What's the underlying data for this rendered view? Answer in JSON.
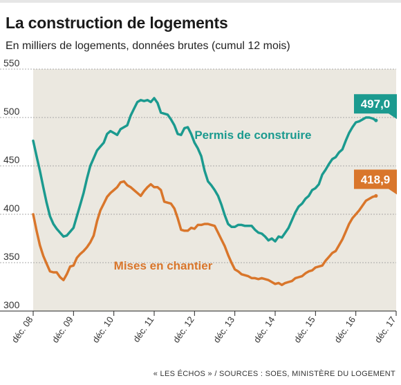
{
  "header": {
    "title": "La construction de logements",
    "subtitle": "En milliers de logements, données brutes (cumul 12 mois)"
  },
  "footer": {
    "credit": "« LES ÉCHOS »  / SOURCES : SOES, MINISTÈRE DU LOGEMENT"
  },
  "colors": {
    "permis": "#1b9a8f",
    "mises": "#d9762b",
    "plot_bg": "#ebe8e0",
    "grid": "#a9a9a9"
  },
  "chart_data": {
    "type": "line",
    "ylim": [
      300,
      550
    ],
    "yticks": [
      300,
      350,
      400,
      450,
      500,
      550
    ],
    "x_range": [
      "2008-12",
      "2017-12"
    ],
    "xtick_labels": [
      "déc. 08",
      "déc. 09",
      "déc. 10",
      "déc. 11",
      "déc. 12",
      "déc. 13",
      "déc. 14",
      "déc. 15",
      "déc. 16",
      "déc. 17"
    ],
    "grid": true,
    "series": [
      {
        "name": "Permis de construire",
        "color": "#1b9a8f",
        "end_label": "497,0",
        "points": [
          [
            "2008-12",
            476
          ],
          [
            "2009-01",
            460
          ],
          [
            "2009-02",
            445
          ],
          [
            "2009-03",
            428
          ],
          [
            "2009-04",
            412
          ],
          [
            "2009-05",
            398
          ],
          [
            "2009-06",
            390
          ],
          [
            "2009-07",
            385
          ],
          [
            "2009-08",
            381
          ],
          [
            "2009-09",
            377
          ],
          [
            "2009-10",
            378
          ],
          [
            "2009-11",
            382
          ],
          [
            "2009-12",
            386
          ],
          [
            "2010-01",
            398
          ],
          [
            "2010-02",
            410
          ],
          [
            "2010-03",
            422
          ],
          [
            "2010-04",
            437
          ],
          [
            "2010-05",
            450
          ],
          [
            "2010-06",
            458
          ],
          [
            "2010-07",
            466
          ],
          [
            "2010-08",
            470
          ],
          [
            "2010-09",
            474
          ],
          [
            "2010-10",
            483
          ],
          [
            "2010-11",
            486
          ],
          [
            "2010-12",
            484
          ],
          [
            "2011-01",
            482
          ],
          [
            "2011-02",
            488
          ],
          [
            "2011-03",
            490
          ],
          [
            "2011-04",
            492
          ],
          [
            "2011-05",
            502
          ],
          [
            "2011-06",
            509
          ],
          [
            "2011-07",
            516
          ],
          [
            "2011-08",
            518
          ],
          [
            "2011-09",
            517
          ],
          [
            "2011-10",
            518
          ],
          [
            "2011-11",
            516
          ],
          [
            "2011-12",
            520
          ],
          [
            "2012-01",
            515
          ],
          [
            "2012-02",
            505
          ],
          [
            "2012-03",
            504
          ],
          [
            "2012-04",
            503
          ],
          [
            "2012-05",
            498
          ],
          [
            "2012-06",
            492
          ],
          [
            "2012-07",
            483
          ],
          [
            "2012-08",
            482
          ],
          [
            "2012-09",
            489
          ],
          [
            "2012-10",
            490
          ],
          [
            "2012-11",
            483
          ],
          [
            "2012-12",
            474
          ],
          [
            "2013-01",
            468
          ],
          [
            "2013-02",
            460
          ],
          [
            "2013-03",
            445
          ],
          [
            "2013-04",
            434
          ],
          [
            "2013-05",
            430
          ],
          [
            "2013-06",
            425
          ],
          [
            "2013-07",
            419
          ],
          [
            "2013-08",
            410
          ],
          [
            "2013-09",
            399
          ],
          [
            "2013-10",
            390
          ],
          [
            "2013-11",
            387
          ],
          [
            "2013-12",
            387
          ],
          [
            "2014-01",
            389
          ],
          [
            "2014-02",
            389
          ],
          [
            "2014-03",
            388
          ],
          [
            "2014-04",
            388
          ],
          [
            "2014-05",
            388
          ],
          [
            "2014-06",
            384
          ],
          [
            "2014-07",
            381
          ],
          [
            "2014-08",
            380
          ],
          [
            "2014-09",
            377
          ],
          [
            "2014-10",
            373
          ],
          [
            "2014-11",
            375
          ],
          [
            "2014-12",
            372
          ],
          [
            "2015-01",
            377
          ],
          [
            "2015-02",
            376
          ],
          [
            "2015-03",
            381
          ],
          [
            "2015-04",
            386
          ],
          [
            "2015-05",
            394
          ],
          [
            "2015-06",
            402
          ],
          [
            "2015-07",
            408
          ],
          [
            "2015-08",
            411
          ],
          [
            "2015-09",
            416
          ],
          [
            "2015-10",
            419
          ],
          [
            "2015-11",
            425
          ],
          [
            "2015-12",
            427
          ],
          [
            "2016-01",
            431
          ],
          [
            "2016-02",
            441
          ],
          [
            "2016-03",
            446
          ],
          [
            "2016-04",
            452
          ],
          [
            "2016-05",
            457
          ],
          [
            "2016-06",
            459
          ],
          [
            "2016-07",
            464
          ],
          [
            "2016-08",
            467
          ],
          [
            "2016-09",
            476
          ],
          [
            "2016-10",
            484
          ],
          [
            "2016-11",
            490
          ],
          [
            "2016-12",
            495
          ],
          [
            "2017-01",
            496
          ],
          [
            "2017-02",
            498
          ],
          [
            "2017-03",
            500
          ],
          [
            "2017-04",
            500
          ],
          [
            "2017-05",
            499
          ],
          [
            "2017-06",
            497
          ]
        ]
      },
      {
        "name": "Mises en chantier",
        "color": "#d9762b",
        "end_label": "418,9",
        "points": [
          [
            "2008-12",
            400
          ],
          [
            "2009-01",
            383
          ],
          [
            "2009-02",
            368
          ],
          [
            "2009-03",
            357
          ],
          [
            "2009-04",
            349
          ],
          [
            "2009-05",
            341
          ],
          [
            "2009-06",
            340
          ],
          [
            "2009-07",
            340
          ],
          [
            "2009-08",
            335
          ],
          [
            "2009-09",
            332
          ],
          [
            "2009-10",
            338
          ],
          [
            "2009-11",
            346
          ],
          [
            "2009-12",
            347
          ],
          [
            "2010-01",
            355
          ],
          [
            "2010-02",
            359
          ],
          [
            "2010-03",
            362
          ],
          [
            "2010-04",
            366
          ],
          [
            "2010-05",
            371
          ],
          [
            "2010-06",
            378
          ],
          [
            "2010-07",
            393
          ],
          [
            "2010-08",
            404
          ],
          [
            "2010-09",
            411
          ],
          [
            "2010-10",
            418
          ],
          [
            "2010-11",
            422
          ],
          [
            "2010-12",
            425
          ],
          [
            "2011-01",
            428
          ],
          [
            "2011-02",
            433
          ],
          [
            "2011-03",
            434
          ],
          [
            "2011-04",
            430
          ],
          [
            "2011-05",
            428
          ],
          [
            "2011-06",
            425
          ],
          [
            "2011-07",
            422
          ],
          [
            "2011-08",
            419
          ],
          [
            "2011-09",
            424
          ],
          [
            "2011-10",
            428
          ],
          [
            "2011-11",
            431
          ],
          [
            "2011-12",
            428
          ],
          [
            "2012-01",
            428
          ],
          [
            "2012-02",
            425
          ],
          [
            "2012-03",
            413
          ],
          [
            "2012-04",
            412
          ],
          [
            "2012-05",
            411
          ],
          [
            "2012-06",
            406
          ],
          [
            "2012-07",
            396
          ],
          [
            "2012-08",
            384
          ],
          [
            "2012-09",
            383
          ],
          [
            "2012-10",
            383
          ],
          [
            "2012-11",
            386
          ],
          [
            "2012-12",
            385
          ],
          [
            "2013-01",
            389
          ],
          [
            "2013-02",
            389
          ],
          [
            "2013-03",
            390
          ],
          [
            "2013-04",
            390
          ],
          [
            "2013-05",
            389
          ],
          [
            "2013-06",
            388
          ],
          [
            "2013-07",
            381
          ],
          [
            "2013-08",
            374
          ],
          [
            "2013-09",
            367
          ],
          [
            "2013-10",
            358
          ],
          [
            "2013-11",
            350
          ],
          [
            "2013-12",
            343
          ],
          [
            "2014-01",
            341
          ],
          [
            "2014-02",
            338
          ],
          [
            "2014-03",
            337
          ],
          [
            "2014-04",
            336
          ],
          [
            "2014-05",
            334
          ],
          [
            "2014-06",
            334
          ],
          [
            "2014-07",
            333
          ],
          [
            "2014-08",
            334
          ],
          [
            "2014-09",
            333
          ],
          [
            "2014-10",
            332
          ],
          [
            "2014-11",
            330
          ],
          [
            "2014-12",
            328
          ],
          [
            "2015-01",
            329
          ],
          [
            "2015-02",
            327
          ],
          [
            "2015-03",
            329
          ],
          [
            "2015-04",
            330
          ],
          [
            "2015-05",
            331
          ],
          [
            "2015-06",
            334
          ],
          [
            "2015-07",
            335
          ],
          [
            "2015-08",
            336
          ],
          [
            "2015-09",
            339
          ],
          [
            "2015-10",
            341
          ],
          [
            "2015-11",
            342
          ],
          [
            "2015-12",
            345
          ],
          [
            "2016-01",
            346
          ],
          [
            "2016-02",
            347
          ],
          [
            "2016-03",
            352
          ],
          [
            "2016-04",
            356
          ],
          [
            "2016-05",
            360
          ],
          [
            "2016-06",
            362
          ],
          [
            "2016-07",
            368
          ],
          [
            "2016-08",
            374
          ],
          [
            "2016-09",
            382
          ],
          [
            "2016-10",
            390
          ],
          [
            "2016-11",
            396
          ],
          [
            "2016-12",
            400
          ],
          [
            "2017-01",
            404
          ],
          [
            "2017-02",
            409
          ],
          [
            "2017-03",
            414
          ],
          [
            "2017-04",
            416
          ],
          [
            "2017-05",
            418
          ],
          [
            "2017-06",
            419
          ]
        ]
      }
    ],
    "annotations": [
      {
        "text": "Permis de construire",
        "series": 0,
        "anchor_date": "2012-12",
        "anchor_y": 478
      },
      {
        "text": "Mises en chantier",
        "series": 1,
        "anchor_date": "2010-12",
        "anchor_y": 343
      }
    ]
  }
}
